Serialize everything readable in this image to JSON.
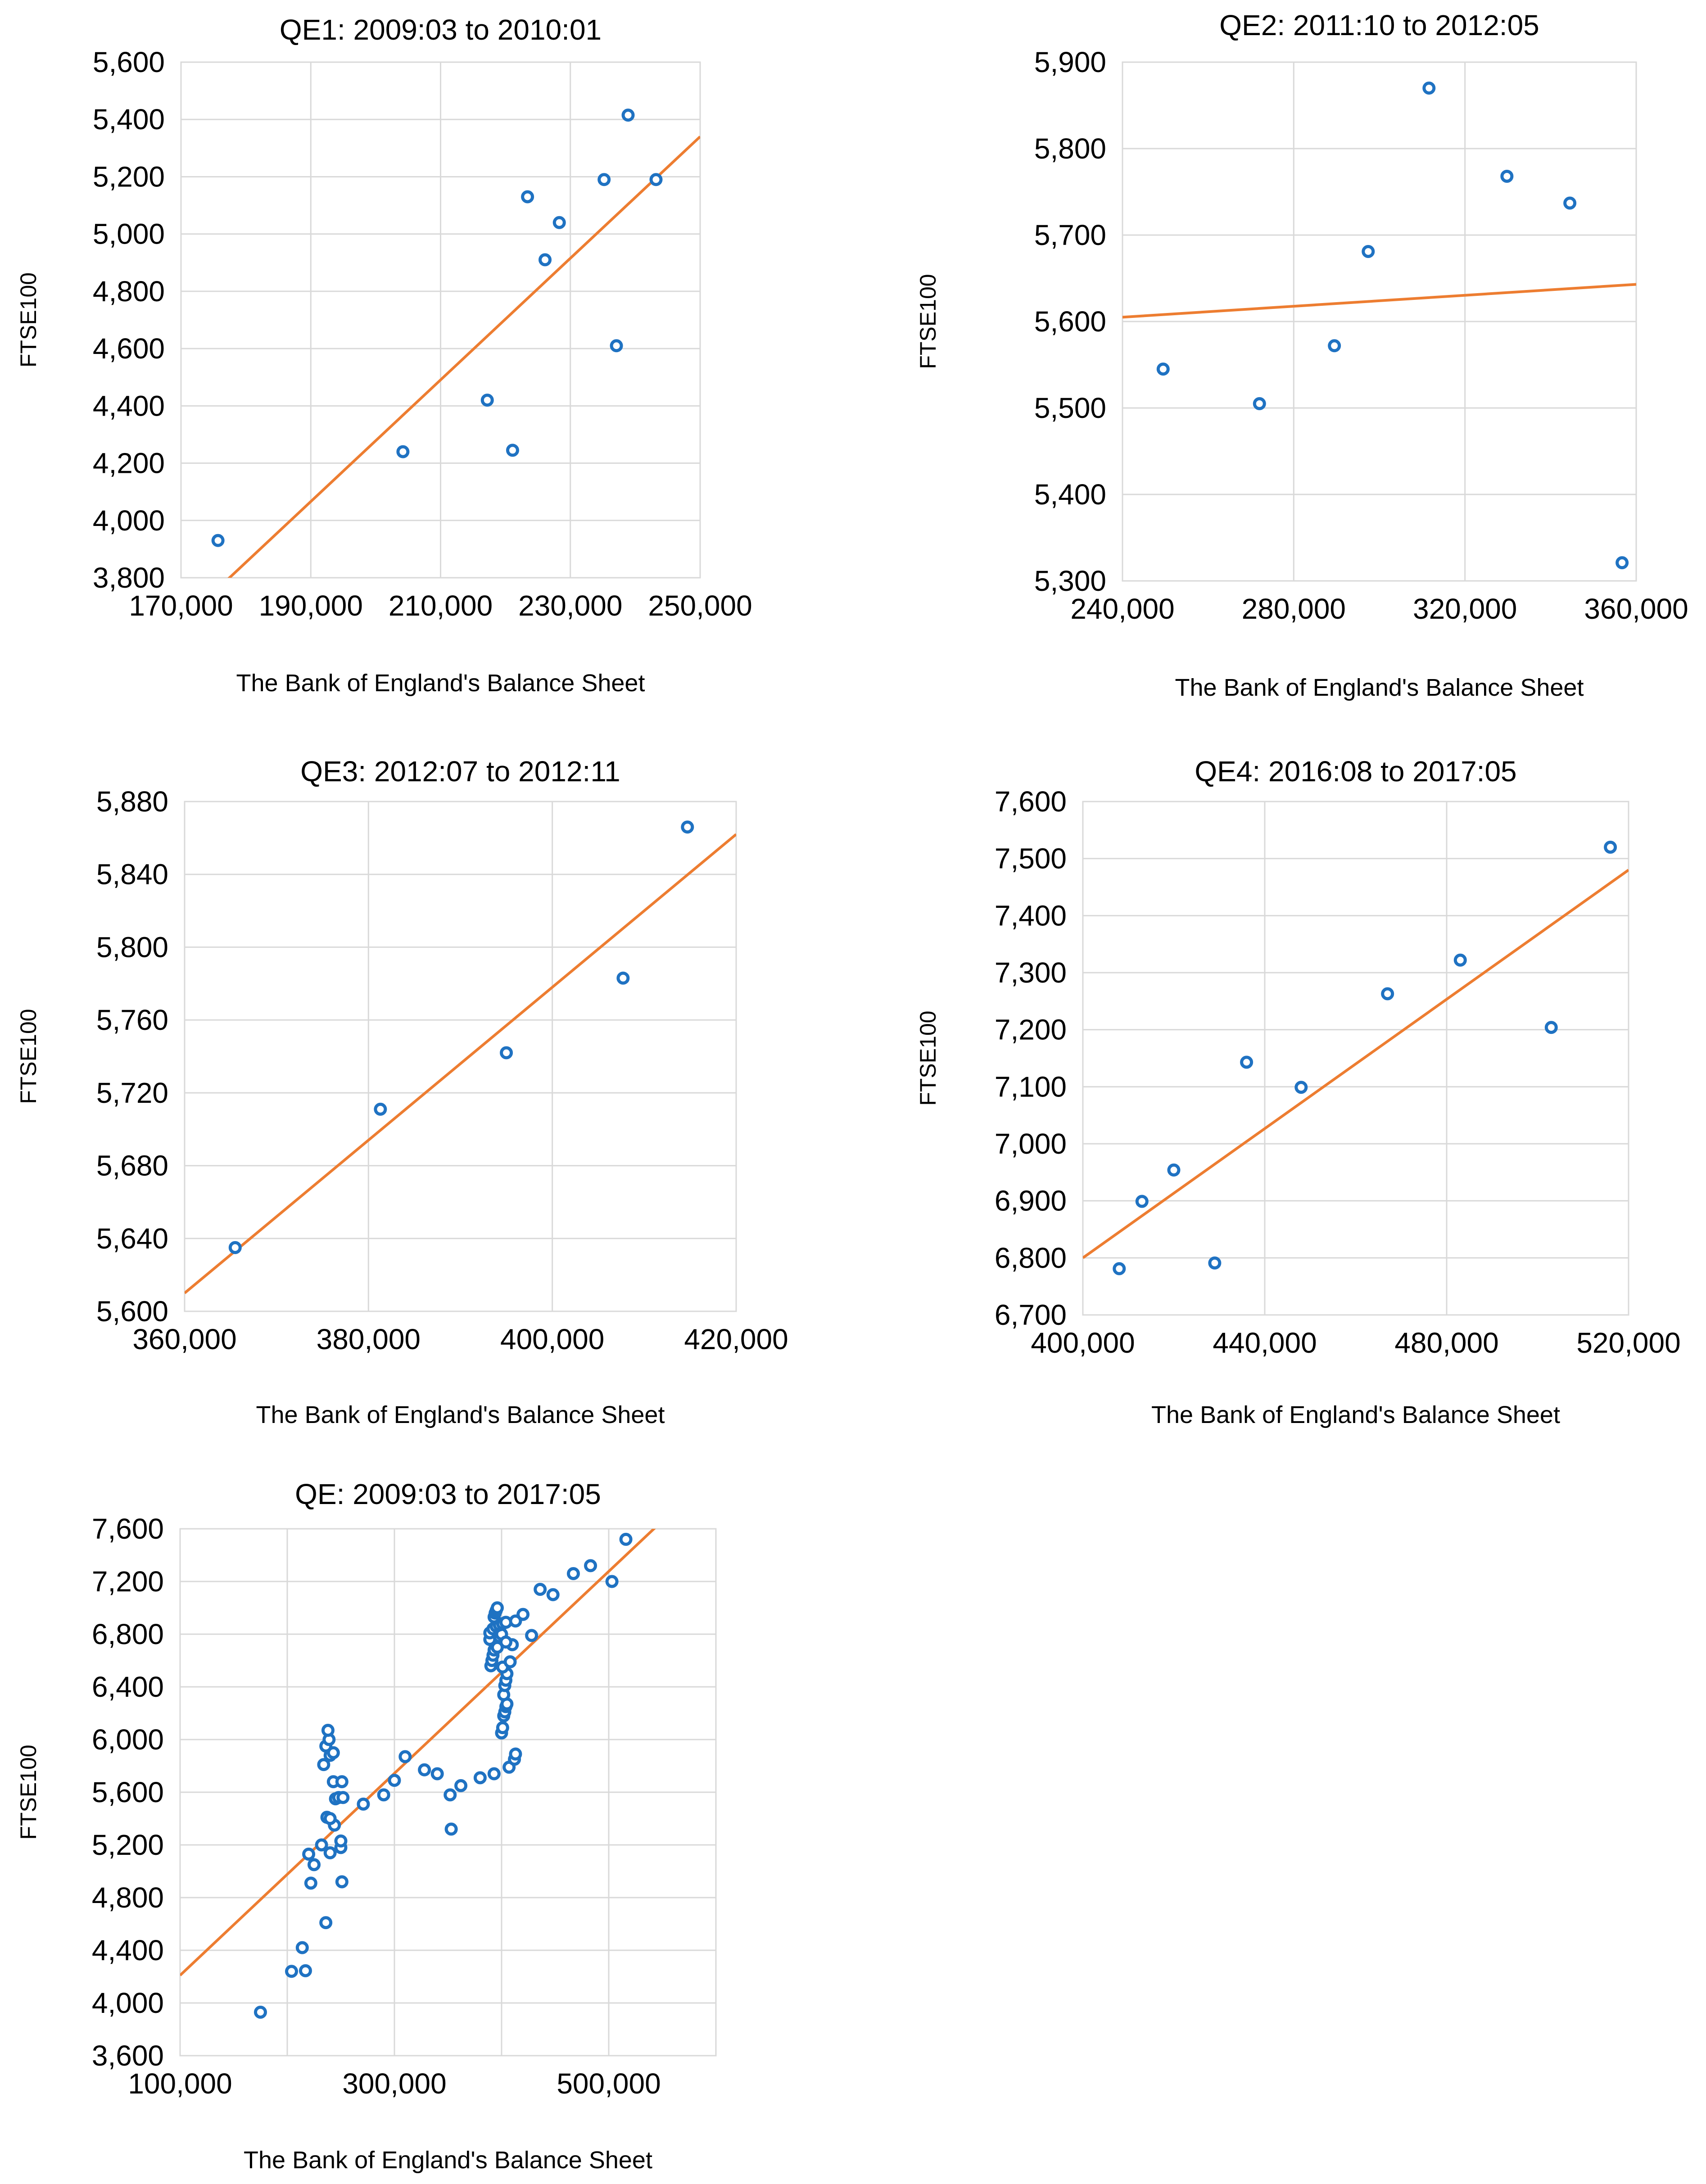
{
  "chart_data": [
    {
      "type": "scatter",
      "title": "QE1: 2009:03 to 2010:01",
      "xlabel": "The Bank of England's Balance Sheet",
      "ylabel": "FTSE100",
      "xlim": [
        170000,
        250000
      ],
      "ylim": [
        3800,
        5600
      ],
      "xticks": [
        170000,
        190000,
        210000,
        230000,
        250000
      ],
      "yticks": [
        3800,
        4000,
        4200,
        4400,
        4600,
        4800,
        5000,
        5200,
        5400,
        5600
      ],
      "xtick_labels": [
        "170,000",
        "190,000",
        "210,000",
        "230,000",
        "250,000"
      ],
      "ytick_labels": [
        "3,800",
        "4,000",
        "4,200",
        "4,400",
        "4,600",
        "4,800",
        "5,000",
        "5,200",
        "5,400",
        "5,600"
      ],
      "points": [
        [
          175700,
          3930
        ],
        [
          204200,
          4240
        ],
        [
          217200,
          4420
        ],
        [
          221100,
          4245
        ],
        [
          223400,
          5130
        ],
        [
          226100,
          4910
        ],
        [
          228300,
          5040
        ],
        [
          235200,
          5190
        ],
        [
          237100,
          4610
        ],
        [
          238900,
          5415
        ],
        [
          243200,
          5190
        ]
      ],
      "trendline": {
        "x": [
          177000,
          250000
        ],
        "y": [
          3790,
          5340
        ],
        "color": "#ed7d31"
      },
      "marker_color": "#1f72c2",
      "grid": true
    },
    {
      "type": "scatter",
      "title": "QE2: 2011:10 to 2012:05",
      "xlabel": "The Bank of England's Balance Sheet",
      "ylabel": "FTSE100",
      "xlim": [
        240000,
        360000
      ],
      "ylim": [
        5300,
        5900
      ],
      "xticks": [
        240000,
        280000,
        320000,
        360000
      ],
      "yticks": [
        5300,
        5400,
        5500,
        5600,
        5700,
        5800,
        5900
      ],
      "xtick_labels": [
        "240,000",
        "280,000",
        "320,000",
        "360,000"
      ],
      "ytick_labels": [
        "5,300",
        "5,400",
        "5,500",
        "5,600",
        "5,700",
        "5,800",
        "5,900"
      ],
      "points": [
        [
          249500,
          5545
        ],
        [
          272000,
          5505
        ],
        [
          289500,
          5572
        ],
        [
          297400,
          5681
        ],
        [
          311600,
          5870
        ],
        [
          329800,
          5768
        ],
        [
          344500,
          5737
        ],
        [
          356700,
          5321
        ]
      ],
      "trendline": {
        "x": [
          240000,
          360000
        ],
        "y": [
          5605,
          5643
        ],
        "color": "#ed7d31"
      },
      "marker_color": "#1f72c2",
      "grid": true
    },
    {
      "type": "scatter",
      "title": "QE3: 2012:07 to 2012:11",
      "xlabel": "The Bank of England's Balance Sheet",
      "ylabel": "FTSE100",
      "xlim": [
        360000,
        420000
      ],
      "ylim": [
        5600,
        5880
      ],
      "xticks": [
        360000,
        380000,
        400000,
        420000
      ],
      "yticks": [
        5600,
        5640,
        5680,
        5720,
        5760,
        5800,
        5840,
        5880
      ],
      "xtick_labels": [
        "360,000",
        "380,000",
        "400,000",
        "420,000"
      ],
      "ytick_labels": [
        "5,600",
        "5,640",
        "5,680",
        "5,720",
        "5,760",
        "5,800",
        "5,840",
        "5,880"
      ],
      "points": [
        [
          365500,
          5635
        ],
        [
          381300,
          5711
        ],
        [
          395000,
          5742
        ],
        [
          407700,
          5783
        ],
        [
          414700,
          5866
        ]
      ],
      "trendline": {
        "x": [
          360000,
          420000
        ],
        "y": [
          5610,
          5862
        ],
        "color": "#ed7d31"
      },
      "marker_color": "#1f72c2",
      "grid": true
    },
    {
      "type": "scatter",
      "title": "QE4: 2016:08 to 2017:05",
      "xlabel": "The Bank of England's Balance Sheet",
      "ylabel": "FTSE100",
      "xlim": [
        400000,
        520000
      ],
      "ylim": [
        6700,
        7600
      ],
      "xticks": [
        400000,
        440000,
        480000,
        520000
      ],
      "yticks": [
        6700,
        6800,
        6900,
        7000,
        7100,
        7200,
        7300,
        7400,
        7500,
        7600
      ],
      "xtick_labels": [
        "400,000",
        "440,000",
        "480,000",
        "520,000"
      ],
      "ytick_labels": [
        "6,700",
        "6,800",
        "6,900",
        "7,000",
        "7,100",
        "7,200",
        "7,300",
        "7,400",
        "7,500",
        "7,600"
      ],
      "points": [
        [
          408000,
          6781
        ],
        [
          413000,
          6899
        ],
        [
          420000,
          6954
        ],
        [
          429000,
          6791
        ],
        [
          436000,
          7143
        ],
        [
          448000,
          7099
        ],
        [
          467000,
          7263
        ],
        [
          483000,
          7322
        ],
        [
          503000,
          7204
        ],
        [
          516000,
          7520
        ]
      ],
      "trendline": {
        "x": [
          400000,
          520000
        ],
        "y": [
          6800,
          7480
        ],
        "color": "#ed7d31"
      },
      "marker_color": "#1f72c2",
      "grid": true
    },
    {
      "type": "scatter",
      "title": "QE: 2009:03 to 2017:05",
      "xlabel": "The Bank of England's Balance Sheet",
      "ylabel": "FTSE100",
      "xlim": [
        100000,
        600000
      ],
      "ylim": [
        3600,
        7600
      ],
      "xticks": [
        100000,
        200000,
        300000,
        400000,
        500000,
        600000
      ],
      "xtick_labels": [
        "100,000",
        "",
        "300,000",
        "",
        "500,000",
        ""
      ],
      "yticks": [
        3600,
        4000,
        4400,
        4800,
        5200,
        5600,
        6000,
        6400,
        6800,
        7200,
        7600
      ],
      "ytick_labels": [
        "3,600",
        "4,000",
        "4,400",
        "4,800",
        "5,200",
        "5,600",
        "6,000",
        "6,400",
        "6,800",
        "7,200",
        "7,600"
      ],
      "points": [
        [
          175000,
          3930
        ],
        [
          204000,
          4240
        ],
        [
          214000,
          4420
        ],
        [
          217000,
          4245
        ],
        [
          222000,
          4910
        ],
        [
          236000,
          4610
        ],
        [
          251000,
          4920
        ],
        [
          220000,
          5130
        ],
        [
          225000,
          5050
        ],
        [
          232000,
          5200
        ],
        [
          240000,
          5140
        ],
        [
          244000,
          5350
        ],
        [
          250000,
          5180
        ],
        [
          250000,
          5230
        ],
        [
          237000,
          5410
        ],
        [
          240000,
          5400
        ],
        [
          245000,
          5550
        ],
        [
          248000,
          5560
        ],
        [
          252000,
          5560
        ],
        [
          243000,
          5680
        ],
        [
          251000,
          5680
        ],
        [
          234000,
          5810
        ],
        [
          240000,
          5880
        ],
        [
          243000,
          5900
        ],
        [
          236000,
          5950
        ],
        [
          239000,
          6000
        ],
        [
          238000,
          6070
        ],
        [
          271000,
          5510
        ],
        [
          290000,
          5580
        ],
        [
          300000,
          5690
        ],
        [
          310000,
          5870
        ],
        [
          328000,
          5770
        ],
        [
          340000,
          5740
        ],
        [
          352000,
          5580
        ],
        [
          353000,
          5320
        ],
        [
          362000,
          5650
        ],
        [
          380000,
          5710
        ],
        [
          393000,
          5740
        ],
        [
          407000,
          5790
        ],
        [
          412000,
          5850
        ],
        [
          413000,
          5890
        ],
        [
          400000,
          6050
        ],
        [
          401000,
          6090
        ],
        [
          402000,
          6180
        ],
        [
          403000,
          6210
        ],
        [
          404000,
          6250
        ],
        [
          405000,
          6270
        ],
        [
          402000,
          6340
        ],
        [
          403000,
          6410
        ],
        [
          404000,
          6450
        ],
        [
          405000,
          6500
        ],
        [
          401000,
          6550
        ],
        [
          390000,
          6560
        ],
        [
          391000,
          6600
        ],
        [
          392000,
          6640
        ],
        [
          393000,
          6680
        ],
        [
          394000,
          6720
        ],
        [
          395000,
          6740
        ],
        [
          389000,
          6760
        ],
        [
          398000,
          6780
        ],
        [
          400000,
          6800
        ],
        [
          389000,
          6810
        ],
        [
          392000,
          6840
        ],
        [
          395000,
          6860
        ],
        [
          398000,
          6870
        ],
        [
          401000,
          6880
        ],
        [
          404000,
          6890
        ],
        [
          393000,
          6930
        ],
        [
          394000,
          6960
        ],
        [
          395000,
          6980
        ],
        [
          396000,
          7000
        ],
        [
          408000,
          6590
        ],
        [
          410000,
          6720
        ],
        [
          404000,
          6740
        ],
        [
          396000,
          6700
        ],
        [
          413000,
          6900
        ],
        [
          420000,
          6950
        ],
        [
          428000,
          6790
        ],
        [
          436000,
          7140
        ],
        [
          448000,
          7100
        ],
        [
          467000,
          7260
        ],
        [
          483000,
          7320
        ],
        [
          503000,
          7200
        ],
        [
          516000,
          7520
        ]
      ],
      "trendline": {
        "x": [
          100000,
          550000
        ],
        "y": [
          4210,
          7660
        ],
        "color": "#ed7d31"
      },
      "marker_color": "#1f72c2",
      "grid": true
    }
  ]
}
